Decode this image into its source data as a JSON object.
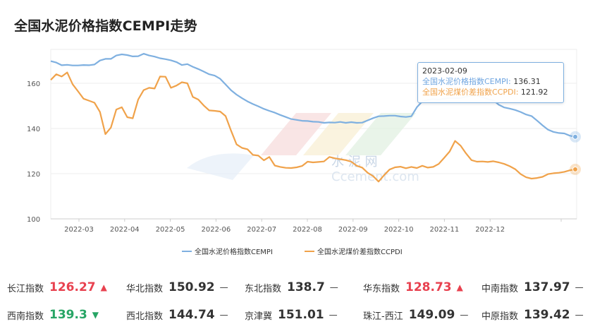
{
  "title": "全国水泥价格指数CEMPI走势",
  "chart_data": {
    "type": "line",
    "ylim": [
      100,
      175
    ],
    "yticks": [
      100,
      120,
      140,
      160
    ],
    "x_labels": [
      "2022-03",
      "2022-04",
      "2022-05",
      "2022-06",
      "2022-07",
      "2022-08",
      "2022-09",
      "2022-10",
      "2022-11",
      "2022-12"
    ],
    "series": [
      {
        "name": "全国水泥价格指数CEMPI",
        "color": "#7fb0e0",
        "values": [
          169.8,
          169.2,
          168.0,
          168.2,
          167.9,
          167.9,
          168.1,
          168.0,
          168.3,
          170.1,
          170.8,
          170.8,
          172.3,
          172.8,
          172.5,
          171.9,
          172.0,
          173.1,
          172.3,
          171.8,
          171.1,
          170.7,
          170.2,
          169.4,
          168.1,
          168.5,
          167.3,
          166.3,
          165.2,
          164.0,
          163.4,
          162.0,
          159.5,
          156.9,
          155.0,
          153.4,
          152.0,
          150.8,
          149.8,
          148.7,
          147.8,
          147.0,
          146.0,
          145.1,
          144.2,
          143.8,
          143.4,
          143.3,
          143.0,
          142.9,
          142.5,
          142.7,
          142.6,
          142.9,
          142.5,
          142.8,
          142.5,
          142.6,
          143.6,
          144.6,
          145.4,
          145.5,
          145.7,
          145.7,
          145.3,
          145.1,
          145.4,
          149.4,
          152.0,
          152.7,
          153.0,
          152.8,
          153.2,
          153.5,
          153.4,
          153.5,
          154.0,
          154.5,
          154.6,
          153.8,
          153.0,
          152.5,
          150.5,
          149.3,
          148.8,
          148.2,
          147.3,
          146.2,
          145.5,
          143.5,
          141.4,
          139.5,
          138.5,
          138.0,
          137.8,
          136.8,
          136.31
        ]
      },
      {
        "name": "全国水泥煤价差指数CCPDI",
        "color": "#f0a24a",
        "values": [
          161.5,
          164.0,
          163.0,
          164.8,
          159.6,
          156.4,
          153.2,
          152.3,
          151.4,
          147.3,
          137.5,
          140.4,
          148.4,
          149.4,
          145.0,
          144.5,
          152.8,
          157.0,
          158.0,
          157.7,
          163.0,
          162.9,
          158.0,
          159.0,
          160.5,
          160.0,
          154.0,
          152.8,
          150.2,
          148.0,
          147.8,
          147.5,
          145.5,
          139.0,
          133.0,
          131.4,
          130.8,
          128.3,
          128.0,
          125.9,
          127.4,
          123.6,
          123.0,
          122.6,
          122.5,
          122.8,
          123.4,
          125.3,
          125.0,
          125.2,
          125.4,
          127.4,
          126.8,
          126.4,
          126.0,
          125.3,
          123.5,
          122.7,
          120.4,
          118.9,
          116.5,
          119.3,
          121.8,
          122.8,
          123.1,
          122.4,
          123.0,
          122.5,
          123.5,
          122.7,
          123.0,
          124.3,
          127.0,
          129.8,
          134.5,
          132.4,
          129.0,
          126.0,
          125.3,
          125.4,
          125.2,
          125.5,
          125.0,
          124.3,
          123.3,
          122.0,
          119.8,
          118.4,
          117.8,
          118.1,
          118.6,
          119.8,
          120.2,
          120.4,
          120.8,
          121.5,
          121.92
        ]
      }
    ]
  },
  "tooltip": {
    "date": "2023-02-09",
    "cempi_label": "全国水泥价格指数CEMPI:",
    "cempi_value": "136.31",
    "ccpdi_label": "全国水泥煤价差指数CCPDI:",
    "ccpdi_value": "121.92"
  },
  "legend": {
    "cempi": "全国水泥价格指数CEMPI",
    "ccpdi": "全国水泥煤价差指数CCPDI"
  },
  "watermark": {
    "text_cn": "水 泥 网",
    "text_en": "Ccement.com"
  },
  "indices": [
    {
      "name": "长江指数",
      "value": "126.27",
      "trend": "up",
      "color": "#e8414f"
    },
    {
      "name": "华北指数",
      "value": "150.92",
      "trend": "flat",
      "color": "#333333"
    },
    {
      "name": "东北指数",
      "value": "138.7",
      "trend": "flat",
      "color": "#333333"
    },
    {
      "name": "华东指数",
      "value": "128.73",
      "trend": "up",
      "color": "#e8414f"
    },
    {
      "name": "中南指数",
      "value": "137.97",
      "trend": "flat",
      "color": "#333333"
    },
    {
      "name": "西南指数",
      "value": "139.3",
      "trend": "down",
      "color": "#27a565"
    },
    {
      "name": "西北指数",
      "value": "144.74",
      "trend": "flat",
      "color": "#333333"
    },
    {
      "name": "京津冀",
      "value": "151.01",
      "trend": "flat",
      "color": "#333333"
    },
    {
      "name": "珠江-西江",
      "value": "149.09",
      "trend": "flat",
      "color": "#333333"
    },
    {
      "name": "中原指数",
      "value": "139.42",
      "trend": "flat",
      "color": "#333333"
    }
  ]
}
